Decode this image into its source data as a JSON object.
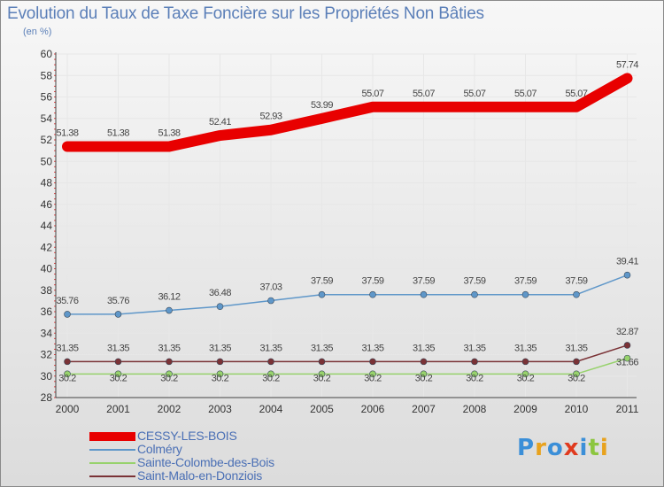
{
  "header": {
    "title": "Evolution du Taux de Taxe Foncière sur les Propriétés Non Bâties",
    "unit": "(en %)"
  },
  "logo": {
    "text": "Proxiti",
    "colors": [
      "#3b8fd8",
      "#e8a21e",
      "#3b8fd8",
      "#e03a1e",
      "#3b8fd8",
      "#8cc63f",
      "#e8a21e"
    ]
  },
  "chart_data": {
    "type": "line",
    "title": "Evolution du Taux de Taxe Foncière sur les Propriétés Non Bâties",
    "ylabel": "(en %)",
    "xlabel": "",
    "categories": [
      "2000",
      "2001",
      "2002",
      "2003",
      "2004",
      "2005",
      "2006",
      "2007",
      "2008",
      "2009",
      "2010",
      "2011"
    ],
    "ylim": [
      28,
      60
    ],
    "yticks": [
      "28",
      "30",
      "32",
      "34",
      "36",
      "38",
      "40",
      "42",
      "44",
      "46",
      "48",
      "50",
      "52",
      "54",
      "56",
      "58",
      "60"
    ],
    "legend_position": "bottom-left",
    "series": [
      {
        "name": "CESSY-LES-BOIS",
        "color": "#e80000",
        "values": [
          51.38,
          51.38,
          51.38,
          52.41,
          52.93,
          53.99,
          55.07,
          55.07,
          55.07,
          55.07,
          55.07,
          57.74
        ],
        "labels": [
          "51.38",
          "51.38",
          "51.38",
          "52.41",
          "52.93",
          "53.99",
          "55.07",
          "55.07",
          "55.07",
          "55.07",
          "55.07",
          "57.74"
        ]
      },
      {
        "name": "Colméry",
        "color": "#5f97c9",
        "values": [
          35.76,
          35.76,
          36.12,
          36.48,
          37.03,
          37.59,
          37.59,
          37.59,
          37.59,
          37.59,
          37.59,
          39.41
        ],
        "labels": [
          "35.76",
          "35.76",
          "36.12",
          "36.48",
          "37.03",
          "37.59",
          "37.59",
          "37.59",
          "37.59",
          "37.59",
          "37.59",
          "39.41"
        ]
      },
      {
        "name": "Sainte-Colombe-des-Bois",
        "color": "#97d26c",
        "values": [
          30.2,
          30.2,
          30.2,
          30.2,
          30.2,
          30.2,
          30.2,
          30.2,
          30.2,
          30.2,
          30.2,
          31.66
        ],
        "labels": [
          "30.2",
          "30.2",
          "30.2",
          "30.2",
          "30.2",
          "30.2",
          "30.2",
          "30.2",
          "30.2",
          "30.2",
          "30.2",
          "31.66"
        ]
      },
      {
        "name": "Saint-Malo-en-Donziois",
        "color": "#7a3236",
        "values": [
          31.35,
          31.35,
          31.35,
          31.35,
          31.35,
          31.35,
          31.35,
          31.35,
          31.35,
          31.35,
          31.35,
          32.87
        ],
        "labels": [
          "31.35",
          "31.35",
          "31.35",
          "31.35",
          "31.35",
          "31.35",
          "31.35",
          "31.35",
          "31.35",
          "31.35",
          "31.35",
          "32.87"
        ]
      }
    ]
  }
}
